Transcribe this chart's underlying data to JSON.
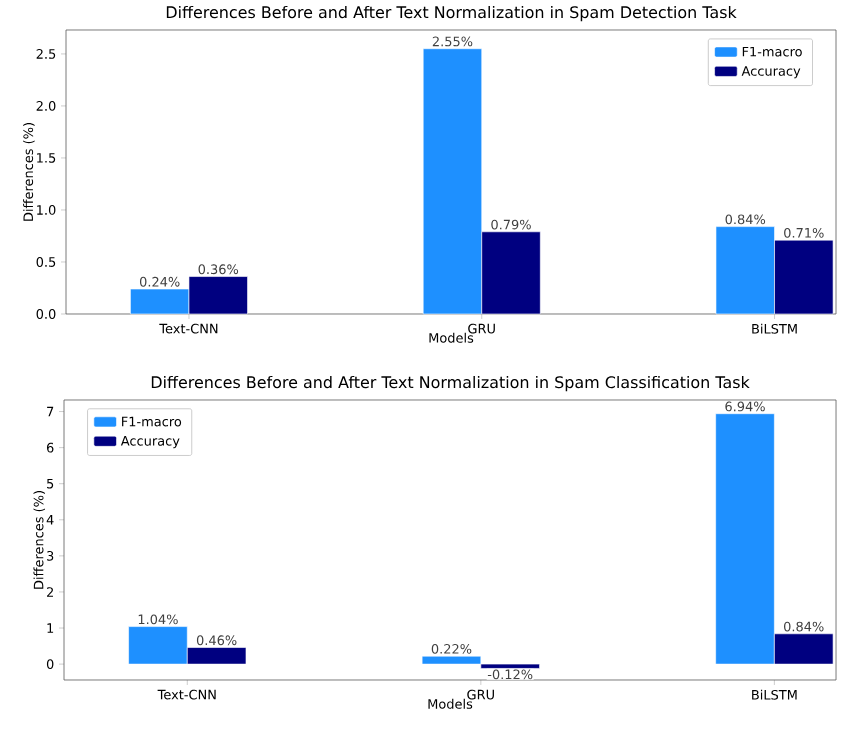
{
  "chart_data": [
    {
      "type": "bar",
      "title": "Differences Before and After Text Normalization in Spam Detection Task",
      "xlabel": "Models",
      "ylabel": "Differences (%)",
      "categories": [
        "Text-CNN",
        "GRU",
        "BiLSTM"
      ],
      "series": [
        {
          "name": "F1-macro",
          "color": "#1e90ff",
          "values": [
            0.24,
            2.55,
            0.84
          ],
          "value_labels": [
            "0.24%",
            "2.55%",
            "0.84%"
          ]
        },
        {
          "name": "Accuracy",
          "color": "#000080",
          "values": [
            0.36,
            0.79,
            0.71
          ],
          "value_labels": [
            "0.36%",
            "0.79%",
            "0.71%"
          ]
        }
      ],
      "ylim": [
        0,
        2.73
      ],
      "yticks": [
        {
          "value": 0,
          "label": "0.0"
        },
        {
          "value": 0.5,
          "label": "0.5"
        },
        {
          "value": 1,
          "label": "1.0"
        },
        {
          "value": 1.5,
          "label": "1.5"
        },
        {
          "value": 2,
          "label": "2.0"
        },
        {
          "value": 2.5,
          "label": "2.5"
        }
      ],
      "legend": "top right"
    },
    {
      "type": "bar",
      "title": "Differences Before and After Text Normalization in Spam Classification Task",
      "xlabel": "Models",
      "ylabel": "Differences (%)",
      "categories": [
        "Text-CNN",
        "GRU",
        "BiLSTM"
      ],
      "series": [
        {
          "name": "F1-macro",
          "color": "#1e90ff",
          "values": [
            1.04,
            0.22,
            6.94
          ],
          "value_labels": [
            "1.04%",
            "0.22%",
            "6.94%"
          ]
        },
        {
          "name": "Accuracy",
          "color": "#000080",
          "values": [
            0.46,
            -0.12,
            0.84
          ],
          "value_labels": [
            "0.46%",
            "-0.12%",
            "0.84%"
          ]
        }
      ],
      "ylim": [
        -0.44,
        7.32
      ],
      "yticks": [
        0,
        1,
        2,
        3,
        4,
        5,
        6,
        7
      ],
      "legend": "top left"
    }
  ]
}
